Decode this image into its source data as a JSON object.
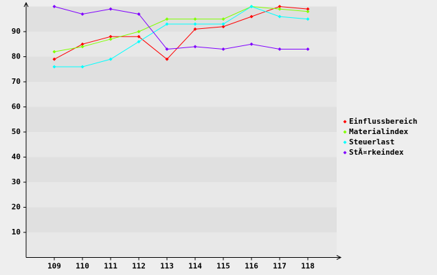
{
  "chart_data": {
    "type": "line",
    "categories": [
      "109",
      "110",
      "111",
      "112",
      "113",
      "114",
      "115",
      "116",
      "117",
      "118"
    ],
    "series": [
      {
        "name": "Einflussbereich",
        "color": "#ff0000",
        "values": [
          79,
          85,
          88,
          88,
          79,
          91,
          92,
          96,
          100,
          99
        ]
      },
      {
        "name": "Materialindex",
        "color": "#80ff00",
        "values": [
          82,
          84,
          87,
          90,
          95,
          95,
          95,
          100,
          99,
          98
        ]
      },
      {
        "name": "Steuerlast",
        "color": "#00ffff",
        "values": [
          76,
          76,
          79,
          86,
          93,
          93,
          93,
          100,
          96,
          95
        ]
      },
      {
        "name": "StÃ¤rkeindex",
        "color": "#8000ff",
        "values": [
          100,
          97,
          99,
          97,
          83,
          84,
          83,
          85,
          83,
          83
        ]
      }
    ],
    "ylim": [
      0,
      100
    ],
    "yticks": [
      10,
      20,
      30,
      40,
      50,
      60,
      70,
      80,
      90
    ],
    "legend": "right"
  }
}
